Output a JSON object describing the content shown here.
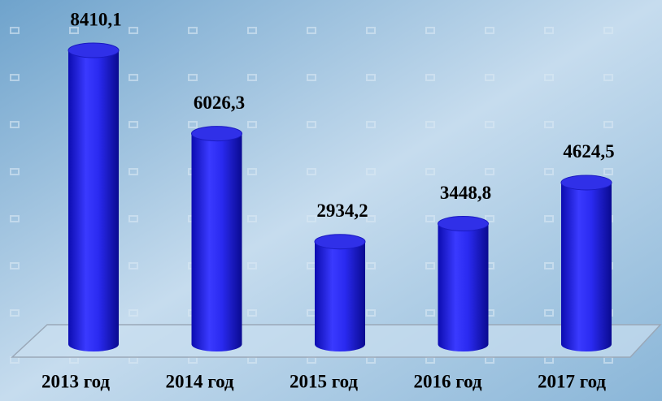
{
  "chart_data": {
    "type": "bar",
    "categories": [
      "2013 год",
      "2014 год",
      "2015 год",
      "2016 год",
      "2017 год"
    ],
    "values": [
      8410.1,
      6026.3,
      2934.2,
      3448.8,
      4624.5
    ],
    "value_labels": [
      "8410,1",
      "6026,3",
      "2934,2",
      "3448,8",
      "4624,5"
    ],
    "color": "#2323f5"
  }
}
